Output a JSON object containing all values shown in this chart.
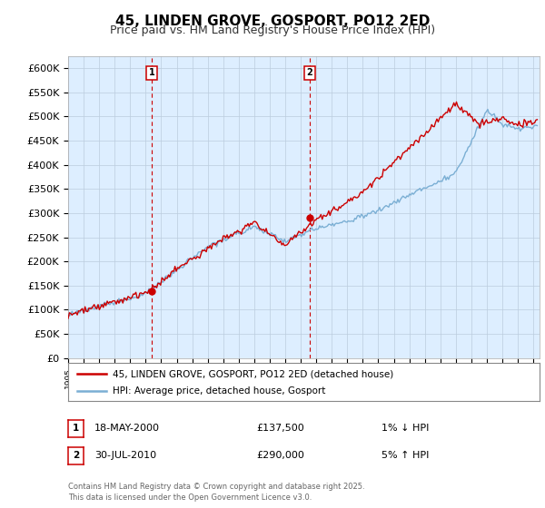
{
  "title": "45, LINDEN GROVE, GOSPORT, PO12 2ED",
  "subtitle": "Price paid vs. HM Land Registry's House Price Index (HPI)",
  "ylim": [
    0,
    625000
  ],
  "yticks": [
    0,
    50000,
    100000,
    150000,
    200000,
    250000,
    300000,
    350000,
    400000,
    450000,
    500000,
    550000,
    600000
  ],
  "ytick_labels": [
    "£0",
    "£50K",
    "£100K",
    "£150K",
    "£200K",
    "£250K",
    "£300K",
    "£350K",
    "£400K",
    "£450K",
    "£500K",
    "£550K",
    "£600K"
  ],
  "legend_line1": "45, LINDEN GROVE, GOSPORT, PO12 2ED (detached house)",
  "legend_line2": "HPI: Average price, detached house, Gosport",
  "annotation1_label": "1",
  "annotation1_date": "18-MAY-2000",
  "annotation1_price": "£137,500",
  "annotation1_pct": "1% ↓ HPI",
  "annotation2_label": "2",
  "annotation2_date": "30-JUL-2010",
  "annotation2_price": "£290,000",
  "annotation2_pct": "5% ↑ HPI",
  "footer": "Contains HM Land Registry data © Crown copyright and database right 2025.\nThis data is licensed under the Open Government Licence v3.0.",
  "line_color_red": "#cc0000",
  "line_color_blue": "#7bafd4",
  "background_color": "#ddeeff",
  "plot_bg": "#ffffff",
  "grid_color": "#bbccdd",
  "vline_color": "#cc0000",
  "annotation_box_color": "#cc0000",
  "title_fontsize": 11,
  "subtitle_fontsize": 9,
  "tick_fontsize": 8,
  "sale1_year": 2000.38,
  "sale1_price": 137500,
  "sale2_year": 2010.58,
  "sale2_price": 290000
}
